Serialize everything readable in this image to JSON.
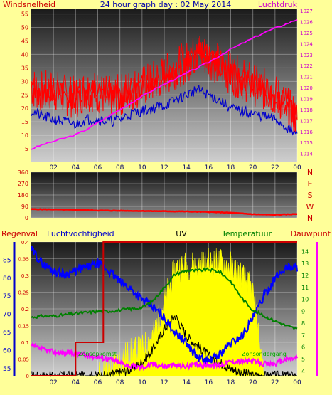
{
  "header": {
    "title": "24 hour graph day : 02 May 2014",
    "left_label": "Windsnelheid",
    "right_label": "Luchtdruk"
  },
  "colors": {
    "background": "#ffff99",
    "wind": "#ff0000",
    "gust_base": "#0000cc",
    "pressure": "#ff00ff",
    "humidity": "#0000ff",
    "temperature": "#008000",
    "dewpoint": "#ff00ff",
    "uv": "#000000",
    "rain": "#cc0000",
    "solar": "#ffff00"
  },
  "chart_data": [
    {
      "type": "line",
      "id": "wind-pressure",
      "title": "24 hour graph day : 02 May 2014",
      "x_ticks": [
        "02",
        "04",
        "06",
        "08",
        "10",
        "12",
        "14",
        "16",
        "18",
        "20",
        "22",
        "00"
      ],
      "left_axis": {
        "label": "Windsnelheid",
        "ticks": [
          5,
          10,
          15,
          20,
          25,
          30,
          35,
          40,
          45,
          50,
          55
        ],
        "range": [
          0,
          57
        ]
      },
      "right_axis": {
        "label": "Luchtdruk",
        "ticks": [
          1014,
          1015,
          1016,
          1017,
          1018,
          1019,
          1020,
          1021,
          1022,
          1023,
          1024,
          1025,
          1026,
          1027
        ],
        "range": [
          1013.2,
          1027.2
        ]
      },
      "series": [
        {
          "name": "Windsnelheid",
          "axis": "left",
          "x": [
            0,
            1,
            2,
            3,
            4,
            5,
            6,
            7,
            8,
            9,
            10,
            11,
            12,
            13,
            14,
            15,
            16,
            17,
            18,
            19,
            20,
            21,
            22,
            23,
            24
          ],
          "values": [
            28,
            26,
            27,
            25,
            24,
            27,
            26,
            24,
            25,
            27,
            28,
            30,
            32,
            35,
            37,
            41,
            39,
            36,
            33,
            31,
            29,
            27,
            25,
            21,
            16
          ]
        },
        {
          "series_role": "gust",
          "axis": "left",
          "x": [
            0,
            1,
            2,
            3,
            4,
            5,
            6,
            7,
            8,
            9,
            10,
            11,
            12,
            13,
            14,
            15,
            16,
            17,
            18,
            19,
            20,
            21,
            22,
            23,
            24
          ],
          "values": [
            19,
            17,
            16,
            15,
            14,
            16,
            16,
            15,
            16,
            18,
            19,
            20,
            21,
            23,
            25,
            27,
            25,
            23,
            20,
            19,
            18,
            17,
            16,
            13,
            10
          ]
        },
        {
          "name": "Luchtdruk",
          "axis": "right",
          "x": [
            0,
            1,
            2,
            3,
            4,
            5,
            6,
            7,
            8,
            9,
            10,
            11,
            12,
            13,
            14,
            15,
            16,
            17,
            18,
            19,
            20,
            21,
            22,
            23,
            24
          ],
          "values": [
            1014.4,
            1014.8,
            1015.1,
            1015.4,
            1015.7,
            1016.2,
            1016.8,
            1017.4,
            1018.0,
            1018.6,
            1019.2,
            1019.8,
            1020.3,
            1020.8,
            1021.3,
            1021.8,
            1022.3,
            1022.9,
            1023.5,
            1024.0,
            1024.5,
            1025.0,
            1025.4,
            1025.8,
            1026.2
          ]
        }
      ]
    },
    {
      "type": "line",
      "id": "wind-direction",
      "x_ticks": [
        "02",
        "04",
        "06",
        "08",
        "10",
        "12",
        "14",
        "16",
        "18",
        "20",
        "22",
        "00"
      ],
      "left_axis": {
        "ticks": [
          0,
          90,
          180,
          270,
          360
        ],
        "range": [
          0,
          360
        ]
      },
      "right_labels": [
        "N",
        "W",
        "S",
        "E",
        "N"
      ],
      "series": [
        {
          "axis": "left",
          "x": [
            0,
            2,
            4,
            6,
            8,
            10,
            12,
            14,
            16,
            18,
            20,
            22,
            24
          ],
          "values": [
            68,
            66,
            62,
            58,
            56,
            54,
            52,
            50,
            46,
            40,
            28,
            24,
            30
          ]
        }
      ]
    },
    {
      "type": "line",
      "id": "humidity-temp-uv",
      "x_ticks": [
        "02",
        "04",
        "06",
        "08",
        "10",
        "12",
        "14",
        "16",
        "18",
        "20",
        "22",
        "00"
      ],
      "headers": [
        "Regenval",
        "Luchtvochtigheid",
        "UV",
        "Temperatuur",
        "Dauwpunt"
      ],
      "axes": {
        "rain": {
          "ticks": [
            "0",
            "0.05",
            "0.1",
            "0.15",
            "0.2",
            "0.25",
            "0.3",
            "0.35",
            "0.4"
          ],
          "range": [
            0,
            0.4
          ]
        },
        "humidity": {
          "ticks": [
            55,
            60,
            65,
            70,
            75,
            80,
            85
          ],
          "range": [
            53,
            90
          ]
        },
        "temperature": {
          "ticks": [
            4,
            5,
            6,
            7,
            8,
            9,
            10,
            11,
            12,
            13,
            14
          ],
          "range": [
            3.6,
            14.8
          ]
        }
      },
      "annotations": [
        "Zonsopkomst",
        "Zonsondergang"
      ],
      "series": [
        {
          "name": "Luchtvochtigheid",
          "axis": "humidity",
          "x": [
            0,
            1,
            2,
            3,
            4,
            5,
            6,
            7,
            8,
            9,
            10,
            11,
            12,
            13,
            14,
            15,
            16,
            17,
            18,
            19,
            20,
            21,
            22,
            23,
            24
          ],
          "values": [
            88,
            84,
            82,
            81,
            82,
            83,
            84,
            82,
            79,
            77,
            74,
            72,
            69,
            65,
            62,
            58,
            57,
            59,
            62,
            64,
            69,
            75,
            80,
            83,
            83
          ]
        },
        {
          "name": "Temperatuur",
          "axis": "temperature",
          "x": [
            0,
            1,
            2,
            3,
            4,
            5,
            6,
            7,
            8,
            9,
            10,
            11,
            12,
            13,
            14,
            15,
            16,
            17,
            18,
            19,
            20,
            21,
            22,
            23,
            24
          ],
          "values": [
            8.5,
            8.6,
            8.6,
            8.7,
            8.8,
            8.9,
            9.0,
            9.0,
            9.1,
            9.2,
            9.3,
            9.9,
            11.0,
            12.1,
            12.4,
            12.4,
            12.5,
            12.3,
            11.5,
            10.1,
            9.1,
            8.6,
            8.2,
            7.8,
            7.5
          ]
        },
        {
          "name": "Dauwpunt",
          "axis": "temperature",
          "x": [
            0,
            1,
            2,
            3,
            4,
            5,
            6,
            7,
            8,
            9,
            10,
            11,
            12,
            13,
            14,
            15,
            16,
            17,
            18,
            19,
            20,
            21,
            22,
            23,
            24
          ],
          "values": [
            6.1,
            5.8,
            5.6,
            5.5,
            5.5,
            5.3,
            5.2,
            5.0,
            4.7,
            4.4,
            4.3,
            4.6,
            4.4,
            4.5,
            4.4,
            4.5,
            4.5,
            4.5,
            4.8,
            4.8,
            4.8,
            4.6,
            4.6,
            5.0,
            5.1
          ]
        },
        {
          "name": "UV",
          "axis": "rain",
          "x": [
            0,
            6,
            7,
            8,
            9,
            10,
            11,
            12,
            13,
            14,
            15,
            16,
            17,
            18,
            19,
            20,
            24
          ],
          "values": [
            0,
            0,
            0,
            0.01,
            0.02,
            0.04,
            0.08,
            0.14,
            0.18,
            0.12,
            0.09,
            0.06,
            0.04,
            0.02,
            0.01,
            0,
            0
          ]
        },
        {
          "name": "Regenval",
          "axis": "rain",
          "x": [
            0,
            4,
            4,
            6.5,
            6.5,
            24
          ],
          "values": [
            0,
            0,
            0.1,
            0.1,
            0.4,
            0.4
          ]
        },
        {
          "series_role": "solar",
          "axis": "rain",
          "x": [
            0,
            6,
            7,
            8,
            9,
            10,
            11,
            12,
            13,
            14,
            15,
            16,
            17,
            18,
            19,
            20,
            21,
            24
          ],
          "values": [
            0,
            0,
            0.02,
            0.05,
            0.07,
            0.08,
            0.12,
            0.22,
            0.32,
            0.33,
            0.33,
            0.34,
            0.34,
            0.33,
            0.3,
            0.25,
            0,
            0
          ]
        }
      ]
    }
  ]
}
